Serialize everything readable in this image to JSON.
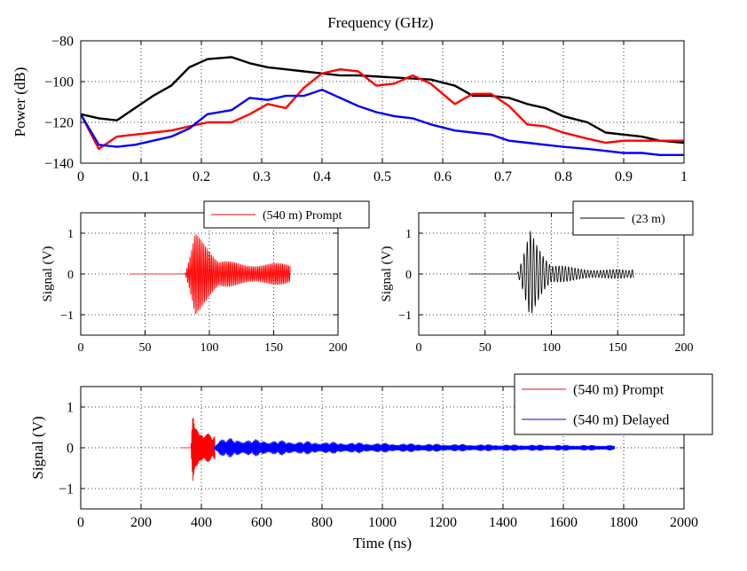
{
  "chart_data": [
    {
      "type": "line",
      "xlabel": "Frequency (GHz)",
      "ylabel": "Power (dB)",
      "xlim": [
        0,
        1
      ],
      "ylim": [
        -140,
        -80
      ],
      "xticks": [
        0,
        0.1,
        0.2,
        0.3,
        0.4,
        0.5,
        0.6,
        0.7,
        0.8,
        0.9,
        1
      ],
      "xtick_labels": [
        "0",
        "0.1",
        "0.2",
        "0.3",
        "0.4",
        "0.5",
        "0.6",
        "0.7",
        "0.8",
        "0.9",
        "1"
      ],
      "yticks": [
        -140,
        -120,
        -100,
        -80
      ],
      "ytick_labels": [
        "−140",
        "−120",
        "−100",
        "−80"
      ],
      "grid": true,
      "legend": "none",
      "series": [
        {
          "color": "#000000",
          "x": [
            0,
            0.03,
            0.06,
            0.09,
            0.12,
            0.15,
            0.18,
            0.21,
            0.25,
            0.28,
            0.31,
            0.34,
            0.37,
            0.4,
            0.43,
            0.46,
            0.49,
            0.52,
            0.55,
            0.58,
            0.62,
            0.65,
            0.68,
            0.71,
            0.74,
            0.77,
            0.8,
            0.84,
            0.87,
            0.9,
            0.93,
            0.96,
            1.0
          ],
          "y": [
            -116,
            -118,
            -119,
            -113,
            -107,
            -102,
            -93,
            -89,
            -88,
            -91,
            -93,
            -94,
            -95,
            -96,
            -97,
            -97,
            -97.5,
            -98,
            -98.5,
            -99,
            -102,
            -107,
            -107,
            -108,
            -111,
            -113,
            -117,
            -120,
            -125,
            -126,
            -127,
            -129,
            -130
          ]
        },
        {
          "color": "#ff0000",
          "x": [
            0,
            0.03,
            0.06,
            0.09,
            0.12,
            0.15,
            0.18,
            0.21,
            0.25,
            0.28,
            0.31,
            0.34,
            0.37,
            0.4,
            0.43,
            0.46,
            0.49,
            0.52,
            0.55,
            0.58,
            0.62,
            0.65,
            0.68,
            0.71,
            0.74,
            0.77,
            0.8,
            0.84,
            0.87,
            0.9,
            0.93,
            0.96,
            1.0
          ],
          "y": [
            -116,
            -133,
            -127,
            -126,
            -125,
            -124,
            -122,
            -120,
            -120,
            -116,
            -111,
            -113,
            -103,
            -96,
            -94,
            -95,
            -102,
            -101,
            -97,
            -101,
            -111,
            -106,
            -106,
            -112,
            -121,
            -122,
            -125,
            -128,
            -130,
            -129,
            -129,
            -129,
            -129
          ]
        },
        {
          "color": "#0000ff",
          "x": [
            0,
            0.03,
            0.06,
            0.09,
            0.12,
            0.15,
            0.18,
            0.21,
            0.25,
            0.28,
            0.31,
            0.34,
            0.37,
            0.4,
            0.43,
            0.46,
            0.49,
            0.52,
            0.55,
            0.58,
            0.62,
            0.65,
            0.68,
            0.71,
            0.74,
            0.77,
            0.8,
            0.84,
            0.87,
            0.9,
            0.93,
            0.96,
            1.0
          ],
          "y": [
            -116,
            -131,
            -132,
            -131,
            -129,
            -127,
            -123,
            -116,
            -114,
            -108,
            -109,
            -107,
            -107,
            -104,
            -108,
            -112,
            -115,
            -117,
            -118,
            -121,
            -124,
            -125,
            -126,
            -129,
            -130,
            -131,
            -132,
            -133,
            -134,
            -135,
            -135,
            -136,
            -136
          ]
        }
      ]
    },
    {
      "type": "line",
      "ylabel": "Signal (V)",
      "xlim": [
        0,
        200
      ],
      "ylim": [
        -1.5,
        1.5
      ],
      "xticks": [
        0,
        50,
        100,
        150,
        200
      ],
      "xtick_labels": [
        "0",
        "50",
        "100",
        "150",
        "200"
      ],
      "yticks": [
        -1,
        0,
        1
      ],
      "ytick_labels": [
        "−1",
        "0",
        "1"
      ],
      "grid": true,
      "legend": "top-right",
      "series": [
        {
          "name": "(540 m) Prompt",
          "color": "#ff0000",
          "waveform": {
            "x_start": 38,
            "x_onset": 81,
            "x_peak": 89,
            "x_end": 163,
            "peak": 1.05,
            "tail": 0.3,
            "decay": 14,
            "period": 1.2
          }
        }
      ]
    },
    {
      "type": "line",
      "ylabel": "Signal (V)",
      "xlim": [
        0,
        200
      ],
      "ylim": [
        -1.5,
        1.5
      ],
      "xticks": [
        0,
        50,
        100,
        150,
        200
      ],
      "xtick_labels": [
        "0",
        "50",
        "100",
        "150",
        "200"
      ],
      "yticks": [
        -1,
        0,
        1
      ],
      "ytick_labels": [
        "−1",
        "0",
        "1"
      ],
      "grid": true,
      "legend": "top-right",
      "series": [
        {
          "name": "(23 m)",
          "color": "#000000",
          "waveform": {
            "x_start": 38,
            "x_onset": 74,
            "x_peak": 84,
            "x_end": 162,
            "peak": 1.1,
            "tail": 0.15,
            "decay": 10,
            "period": 2.4
          }
        }
      ]
    },
    {
      "type": "line",
      "xlabel": "Time (ns)",
      "ylabel": "Signal (V)",
      "xlim": [
        0,
        2000
      ],
      "ylim": [
        -1.5,
        1.5
      ],
      "xticks": [
        0,
        200,
        400,
        600,
        800,
        1000,
        1200,
        1400,
        1600,
        1800,
        2000
      ],
      "xtick_labels": [
        "0",
        "200",
        "400",
        "600",
        "800",
        "1000",
        "1200",
        "1400",
        "1600",
        "1800",
        "2000"
      ],
      "yticks": [
        -1,
        0,
        1
      ],
      "ytick_labels": [
        "−1",
        "0",
        "1"
      ],
      "grid": true,
      "legend": "top-right",
      "series": [
        {
          "name": "(540 m) Prompt",
          "color": "#ff0000",
          "waveform": {
            "x_start": 330,
            "x_onset": 365,
            "x_peak": 372,
            "x_end": 445,
            "peak": 1.05,
            "tail": 0.3,
            "decay": 20,
            "period": 2.6
          }
        },
        {
          "name": "(540 m) Delayed",
          "color": "#0000ff",
          "waveform": {
            "x_start": 440,
            "x_onset": 440,
            "x_peak": 460,
            "x_end": 1770,
            "peak": 0.25,
            "tail": 0.05,
            "decay": 500,
            "period": 3.2
          }
        }
      ]
    }
  ]
}
